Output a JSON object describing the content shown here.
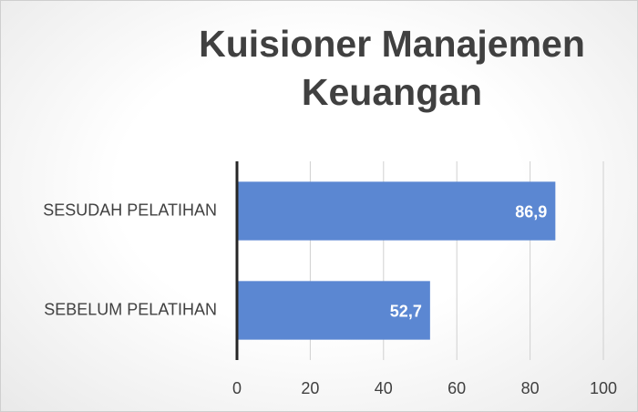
{
  "chart_data": {
    "type": "bar",
    "orientation": "horizontal",
    "title": "Kuisioner Manajemen Keuangan",
    "categories": [
      "SEBELUM PELATIHAN",
      "SESUDAH PELATIHAN"
    ],
    "values": [
      52.7,
      86.9
    ],
    "value_labels": [
      "52,7",
      "86,9"
    ],
    "color": "#5b87d2",
    "xlim": [
      0,
      100
    ],
    "xticks": [
      0,
      20,
      40,
      60,
      80,
      100
    ],
    "grid": true
  }
}
